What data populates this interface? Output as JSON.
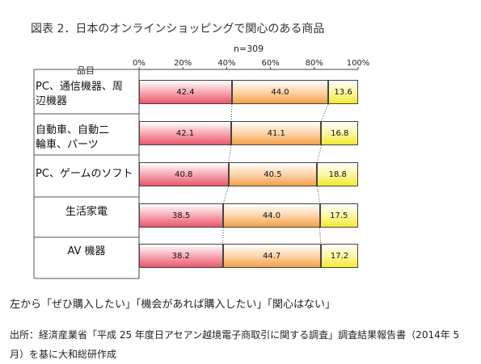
{
  "title": "図表 2．日本のオンラインショッピングで関心のある商品",
  "n_label": "n=309",
  "category_header": "品目",
  "legend_note": "左から「ぜひ購入したい」「機会があれば購入したい」「関心はない」",
  "source": "出所：経済産業省「平成 25 年度日アセアン越境電子商取引に関する調査」調査結果報告書（2014年 5 月）を基に大和総研作成",
  "colors": {
    "s0": "#e8576b",
    "s1": "#f4a04a",
    "s2": "#f2ea2e"
  },
  "chart_data": {
    "type": "bar",
    "orientation": "horizontal",
    "stacked": true,
    "percent": true,
    "xlim": [
      0,
      100
    ],
    "x_ticks": [
      "0%",
      "20%",
      "40%",
      "60%",
      "80%",
      "100%"
    ],
    "categories": [
      "PC、通信機器、周辺機器",
      "自動車、自動二輪車、パーツ",
      "PC、ゲームのソフト",
      "生活家電",
      "AV 機器"
    ],
    "category_lines": [
      [
        "PC、通信機器、周",
        "辺機器"
      ],
      [
        "自動車、自動二",
        "輪車、パーツ"
      ],
      [
        "PC、ゲームのソフト"
      ],
      [
        "生活家電"
      ],
      [
        "AV 機器"
      ]
    ],
    "series": [
      {
        "values": [
          42.4,
          42.1,
          40.8,
          38.5,
          38.2
        ]
      },
      {
        "values": [
          44.0,
          41.1,
          40.5,
          44.0,
          44.7
        ]
      },
      {
        "values": [
          13.6,
          16.8,
          18.8,
          17.5,
          17.2
        ]
      }
    ]
  }
}
